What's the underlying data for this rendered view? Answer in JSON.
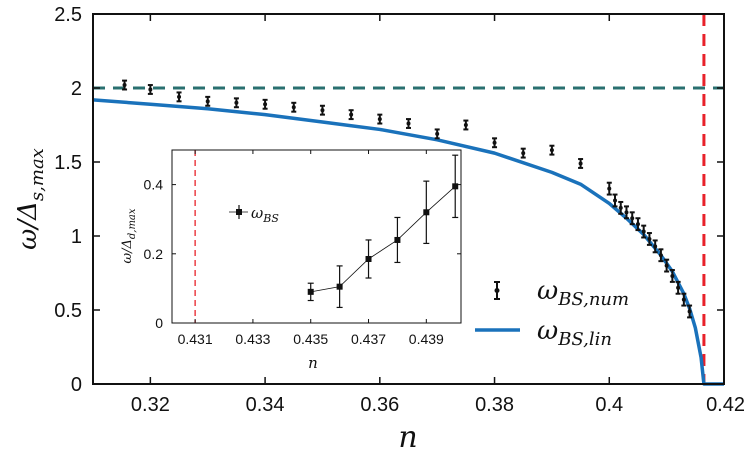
{
  "chart_data": [
    {
      "type": "scatter",
      "title": "",
      "xlabel": "n",
      "ylabel": "ω/Δs,max",
      "ylabel_parts": {
        "main": "ω/Δ",
        "sub": "s,max"
      },
      "xlim": [
        0.31,
        0.42
      ],
      "ylim": [
        0,
        2.5
      ],
      "x_ticks": [
        0.32,
        0.34,
        0.36,
        0.38,
        0.4,
        0.42
      ],
      "x_tick_labels": [
        "0.32",
        "0.34",
        "0.36",
        "0.38",
        "0.4",
        "0.42"
      ],
      "y_ticks": [
        0,
        0.5,
        1,
        1.5,
        2,
        2.5
      ],
      "y_tick_labels": [
        "0",
        "0.5",
        "1",
        "1.5",
        "2",
        "2.5"
      ],
      "grid": false,
      "legend_position": "bottom-right",
      "reference_lines": [
        {
          "orientation": "horizontal",
          "value": 2.0,
          "style": "dashed",
          "color": "#2a7070"
        },
        {
          "orientation": "vertical",
          "value": 0.4165,
          "style": "dashed",
          "color": "#e8212a"
        }
      ],
      "series": [
        {
          "name": "ωBS,num",
          "name_parts": {
            "main": "ω",
            "sub": "BS,num"
          },
          "kind": "errorbar",
          "color": "#111111",
          "x": [
            0.3155,
            0.32,
            0.325,
            0.33,
            0.335,
            0.34,
            0.345,
            0.35,
            0.355,
            0.36,
            0.365,
            0.37,
            0.375,
            0.38,
            0.385,
            0.39,
            0.395,
            0.4,
            0.401,
            0.402,
            0.403,
            0.404,
            0.405,
            0.406,
            0.407,
            0.408,
            0.409,
            0.41,
            0.411,
            0.412,
            0.413,
            0.414
          ],
          "y": [
            2.02,
            1.99,
            1.94,
            1.91,
            1.9,
            1.89,
            1.87,
            1.85,
            1.82,
            1.79,
            1.76,
            1.69,
            1.75,
            1.63,
            1.56,
            1.58,
            1.49,
            1.32,
            1.24,
            1.19,
            1.16,
            1.12,
            1.08,
            1.03,
            0.98,
            0.93,
            0.87,
            0.8,
            0.73,
            0.65,
            0.57,
            0.49
          ],
          "err": [
            0.03,
            0.03,
            0.03,
            0.03,
            0.03,
            0.03,
            0.03,
            0.03,
            0.03,
            0.03,
            0.03,
            0.03,
            0.03,
            0.03,
            0.03,
            0.03,
            0.03,
            0.04,
            0.04,
            0.04,
            0.04,
            0.04,
            0.04,
            0.04,
            0.04,
            0.04,
            0.04,
            0.04,
            0.04,
            0.04,
            0.04,
            0.04
          ]
        },
        {
          "name": "ωBS,lin",
          "name_parts": {
            "main": "ω",
            "sub": "BS,lin"
          },
          "kind": "line",
          "color": "#1a72bb",
          "x": [
            0.31,
            0.32,
            0.33,
            0.34,
            0.35,
            0.36,
            0.37,
            0.38,
            0.39,
            0.395,
            0.4,
            0.403,
            0.406,
            0.409,
            0.411,
            0.413,
            0.414,
            0.415,
            0.416,
            0.4165,
            0.42
          ],
          "y": [
            1.92,
            1.89,
            1.86,
            1.82,
            1.77,
            1.72,
            1.65,
            1.56,
            1.43,
            1.35,
            1.22,
            1.12,
            1.01,
            0.87,
            0.76,
            0.61,
            0.51,
            0.38,
            0.18,
            0.0,
            0.0
          ]
        }
      ]
    },
    {
      "type": "line",
      "title": "",
      "inset": true,
      "xlabel": "n",
      "ylabel": "ω/Δd,max",
      "ylabel_parts": {
        "main": "ω/Δ",
        "sub": "d,max"
      },
      "xlim": [
        0.4302,
        0.4402
      ],
      "ylim": [
        0,
        0.5
      ],
      "x_ticks": [
        0.431,
        0.433,
        0.435,
        0.437,
        0.439
      ],
      "x_tick_labels": [
        "0.431",
        "0.433",
        "0.435",
        "0.437",
        "0.439"
      ],
      "y_ticks": [
        0,
        0.2,
        0.4
      ],
      "y_tick_labels": [
        "0",
        "0.2",
        "0.4"
      ],
      "grid": false,
      "legend_position": "top-left",
      "reference_lines": [
        {
          "orientation": "vertical",
          "value": 0.431,
          "style": "dashed",
          "color": "#e8212a"
        }
      ],
      "series": [
        {
          "name": "ωBS",
          "name_parts": {
            "main": "ω",
            "sub": "BS"
          },
          "kind": "errorbar-line",
          "color": "#111111",
          "x": [
            0.435,
            0.436,
            0.437,
            0.438,
            0.439,
            0.44
          ],
          "y": [
            0.09,
            0.105,
            0.185,
            0.24,
            0.32,
            0.395
          ],
          "err": [
            0.025,
            0.06,
            0.055,
            0.065,
            0.09,
            0.09
          ]
        }
      ]
    }
  ]
}
